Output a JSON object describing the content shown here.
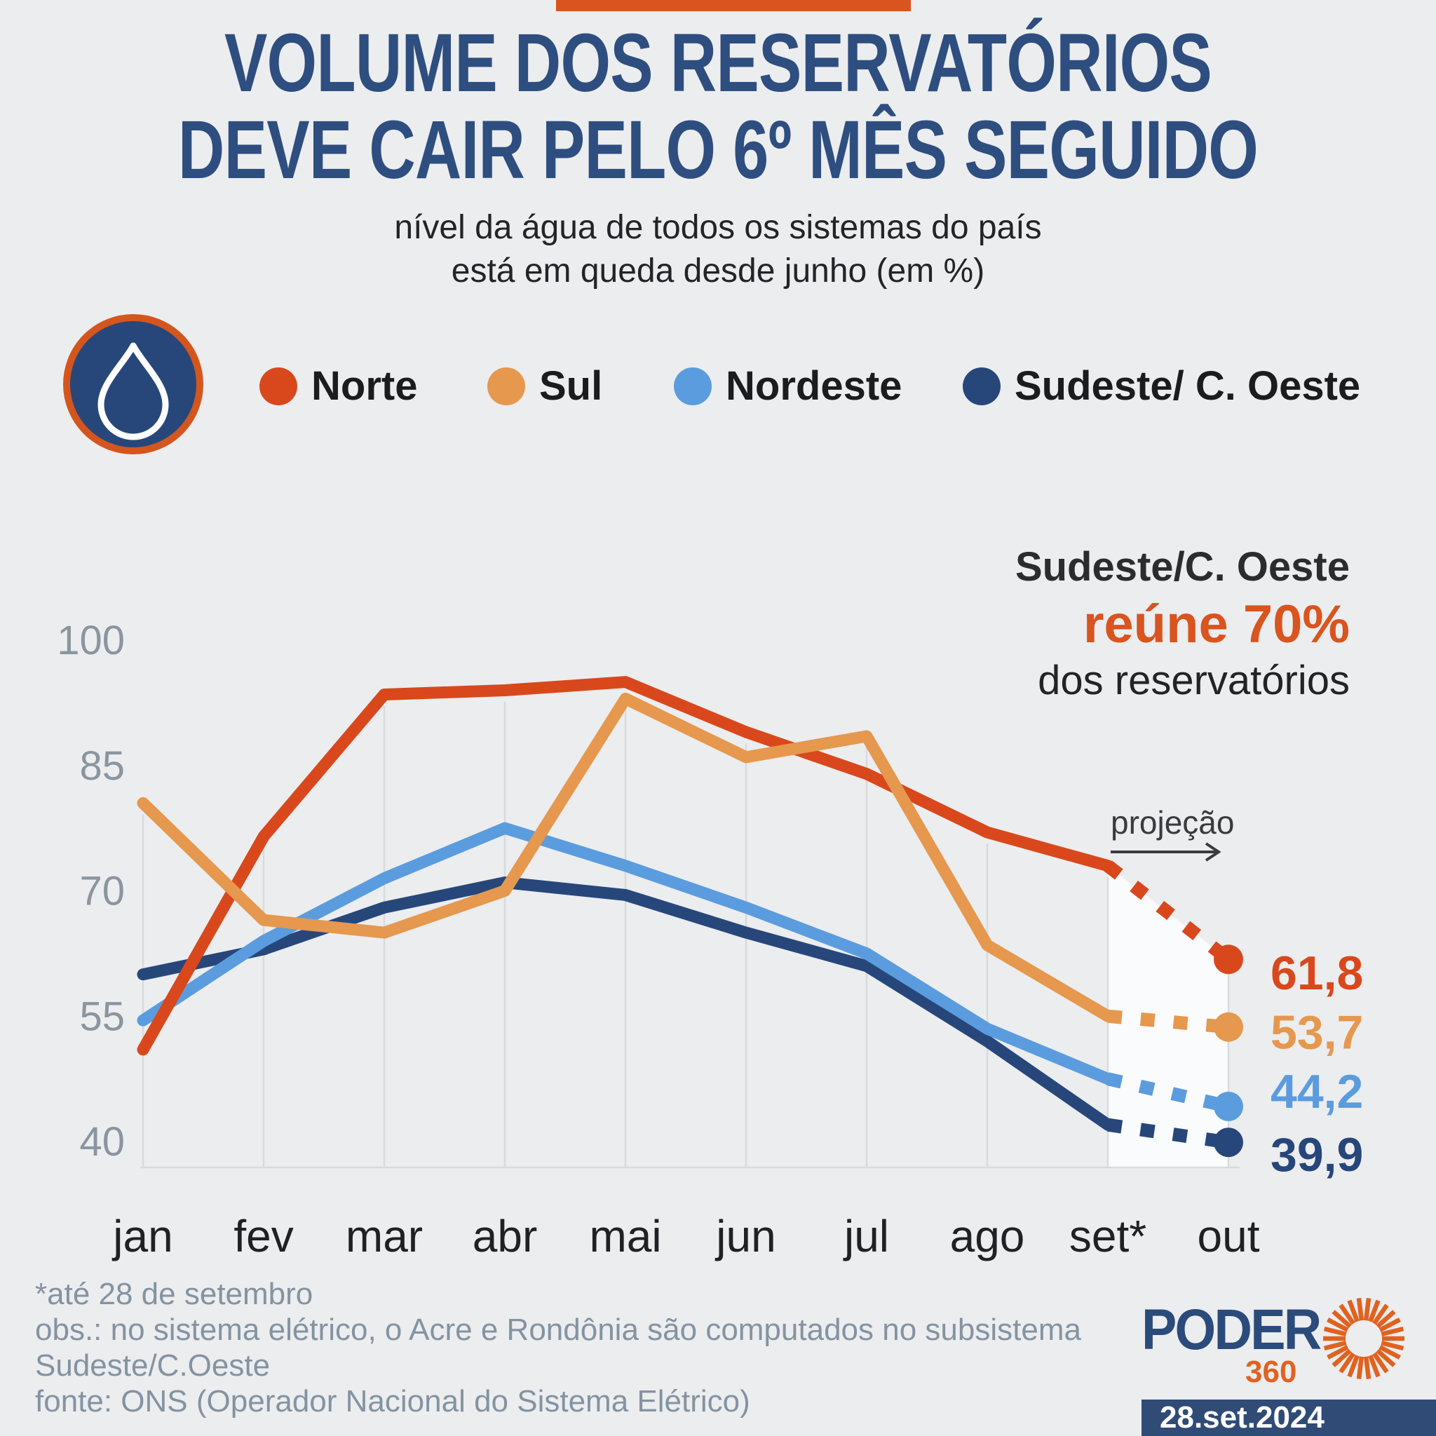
{
  "header": {
    "accent_bar_color": "#D9541E",
    "title_line1": "VOLUME DOS RESERVATÓRIOS",
    "title_line2": "DEVE CAIR PELO 6º MÊS SEGUIDO",
    "title_color": "#2E4E80",
    "subtitle_line1": "nível da água de todos os sistemas do país",
    "subtitle_line2": "está em queda desde junho (em %)"
  },
  "legend": {
    "icon": "water-drop-icon",
    "icon_colors": {
      "circle": "#27477B",
      "ring": "#D4561E",
      "drop": "#FFFFFF"
    },
    "items": [
      {
        "label": "Norte",
        "color": "#D9481C"
      },
      {
        "label": "Sul",
        "color": "#E5984E"
      },
      {
        "label": "Nordeste",
        "color": "#5B9CDE"
      },
      {
        "label": "Sudeste/ C. Oeste",
        "color": "#27477B"
      }
    ]
  },
  "annotation": {
    "line1": "Sudeste/C. Oeste",
    "line2": "reúne 70%",
    "line3": "dos reservatórios",
    "highlight_color": "#D9541E"
  },
  "chart_data": {
    "type": "line",
    "categories": [
      "jan",
      "fev",
      "mar",
      "abr",
      "mai",
      "jun",
      "jul",
      "ago",
      "set*",
      "out"
    ],
    "series": [
      {
        "name": "Norte",
        "color": "#D9481C",
        "values": [
          51,
          76.5,
          93.5,
          94,
          95,
          89,
          84,
          77,
          73,
          61.8
        ],
        "final_label": "61,8"
      },
      {
        "name": "Sul",
        "color": "#E5984E",
        "values": [
          80.5,
          66.5,
          65,
          70,
          93,
          86,
          88.5,
          63.5,
          55,
          53.7
        ],
        "final_label": "53,7"
      },
      {
        "name": "Nordeste",
        "color": "#5B9CDE",
        "values": [
          54.5,
          64,
          71.5,
          77.5,
          73,
          68,
          62.5,
          53.5,
          47.5,
          44.2
        ],
        "final_label": "44,2"
      },
      {
        "name": "Sudeste/ C. Oeste",
        "color": "#27477B",
        "values": [
          60,
          63,
          68,
          71,
          69.5,
          65,
          61,
          52,
          42,
          39.9
        ],
        "final_label": "39,9"
      }
    ],
    "projection_start_index": 8,
    "projection_label": "projeção",
    "y_ticks": [
      100,
      85,
      70,
      55,
      40
    ],
    "ylim": [
      40,
      100
    ],
    "grid": "vertical-partial",
    "legend_position": "top",
    "projection_band_color": "#FAFBFC"
  },
  "footer": {
    "footnote": "*até 28 de setembro",
    "obs_line1": "obs.: no sistema elétrico, o Acre e Rondônia são computados no subsistema",
    "obs_line2": "Sudeste/C.Oeste",
    "fonte": "fonte: ONS (Operador Nacional do Sistema Elétrico)"
  },
  "logo": {
    "name": "PODER",
    "sub": "360",
    "color": "#2B4B7B",
    "accent": "#E06220"
  },
  "date_badge": "28.set.2024"
}
